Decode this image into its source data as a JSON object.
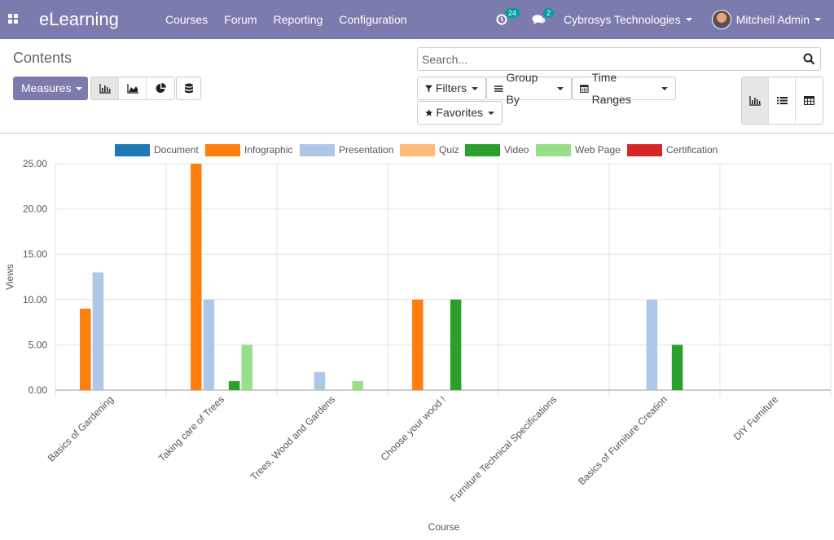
{
  "topbar": {
    "brand": "eLearning",
    "menu": [
      "Courses",
      "Forum",
      "Reporting",
      "Configuration"
    ],
    "activity_count": "24",
    "message_count": "2",
    "company": "Cybrosys Technologies",
    "user": "Mitchell Admin",
    "bar_color": "#7c7bad"
  },
  "control_panel": {
    "breadcrumb": "Contents",
    "measures_label": "Measures",
    "search_placeholder": "Search...",
    "filters_label": "Filters",
    "group_by_label": "Group By",
    "time_ranges_label": "Time Ranges",
    "favorites_label": "Favorites",
    "chart_modes": [
      "bar-chart-icon",
      "line-chart-icon",
      "pie-chart-icon"
    ],
    "active_chart_mode": "bar-chart-icon",
    "views": [
      "graph-view-icon",
      "list-view-icon",
      "pivot-view-icon"
    ],
    "active_view": "graph-view-icon"
  },
  "chart_data": {
    "type": "bar",
    "title": "",
    "xlabel": "Course",
    "ylabel": "Views",
    "ylim": [
      0,
      25
    ],
    "yticks": [
      "0.00",
      "5.00",
      "10.00",
      "15.00",
      "20.00",
      "25.00"
    ],
    "grid": true,
    "legend_position": "top",
    "categories": [
      "Basics of Gardening",
      "Taking care of Trees",
      "Trees, Wood and Gardens",
      "Choose your wood !",
      "Furniture Technical Specifications",
      "Basics of Furniture Creation",
      "DIY Furniture"
    ],
    "series": [
      {
        "name": "Document",
        "color": "#1f77b4",
        "values": [
          0,
          0,
          0,
          0,
          0,
          0,
          0
        ]
      },
      {
        "name": "Infographic",
        "color": "#ff7f0e",
        "values": [
          9,
          25,
          0,
          10,
          0,
          0,
          0
        ]
      },
      {
        "name": "Presentation",
        "color": "#aec7e8",
        "values": [
          13,
          10,
          2,
          0,
          0,
          10,
          0
        ]
      },
      {
        "name": "Quiz",
        "color": "#ffbb78",
        "values": [
          0,
          0,
          0,
          0,
          0,
          0,
          0
        ]
      },
      {
        "name": "Video",
        "color": "#2ca02c",
        "values": [
          0,
          1,
          0,
          10,
          0,
          5,
          0
        ]
      },
      {
        "name": "Web Page",
        "color": "#98df8a",
        "values": [
          0,
          5,
          1,
          0,
          0,
          0,
          0
        ]
      },
      {
        "name": "Certification",
        "color": "#d62728",
        "values": [
          0,
          0,
          0,
          0,
          0,
          0,
          0
        ]
      }
    ]
  }
}
